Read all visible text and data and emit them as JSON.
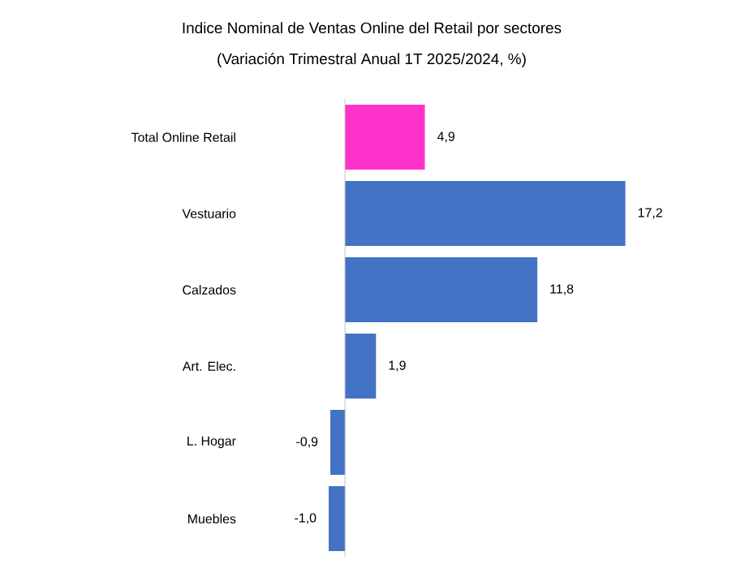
{
  "chart_data": {
    "type": "bar",
    "orientation": "horizontal",
    "title": "Indice Nominal de Ventas Online del Retail  por sectores",
    "subtitle": "(Variación Trimestral Anual 1T 2025/2024, %)",
    "categories": [
      "Total Online Retail",
      "Vestuario",
      "Calzados",
      "Art. Elec.",
      "L. Hogar",
      "Muebles"
    ],
    "values": [
      4.9,
      17.2,
      11.8,
      1.9,
      -0.9,
      -1.0
    ],
    "colors": [
      "#ff33cc",
      "#4472c4",
      "#4472c4",
      "#4472c4",
      "#4472c4",
      "#4472c4"
    ],
    "value_labels": [
      "4,9",
      "17,2",
      "11,8",
      "1,9",
      "-0,9",
      "-1,0"
    ],
    "tick_labels": "y"
  }
}
